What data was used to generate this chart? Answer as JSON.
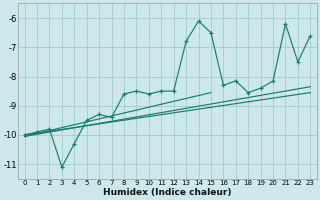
{
  "xlabel": "Humidex (Indice chaleur)",
  "bg_color": "#cce8ed",
  "grid_color": "#aacdd4",
  "line_color": "#1a7a6e",
  "xlim": [
    -0.5,
    23.5
  ],
  "ylim": [
    -11.5,
    -5.5
  ],
  "xticks": [
    0,
    1,
    2,
    3,
    4,
    5,
    6,
    7,
    8,
    9,
    10,
    11,
    12,
    13,
    14,
    15,
    16,
    17,
    18,
    19,
    20,
    21,
    22,
    23
  ],
  "yticks": [
    -11,
    -10,
    -9,
    -8,
    -7,
    -6
  ],
  "data_x": [
    0,
    1,
    2,
    3,
    4,
    5,
    6,
    7,
    8,
    9,
    10,
    11,
    12,
    13,
    14,
    15,
    16,
    17,
    18,
    19,
    20,
    21,
    22,
    23
  ],
  "data_y": [
    -10.0,
    -9.9,
    -9.8,
    -11.1,
    -10.3,
    -9.5,
    -9.3,
    -9.4,
    -8.6,
    -8.5,
    -8.6,
    -8.5,
    -8.5,
    -6.8,
    -6.1,
    -6.5,
    -8.3,
    -8.15,
    -8.55,
    -8.4,
    -8.15,
    -6.2,
    -7.5,
    -6.6
  ],
  "trend_lines": [
    {
      "x0": 0.0,
      "y0": -10.05,
      "x1": 23.0,
      "y1": -8.35
    },
    {
      "x0": 0.0,
      "y0": -10.0,
      "x1": 23.0,
      "y1": -8.55
    },
    {
      "x0": 0.0,
      "y0": -10.05,
      "x1": 15.0,
      "y1": -8.55
    }
  ]
}
